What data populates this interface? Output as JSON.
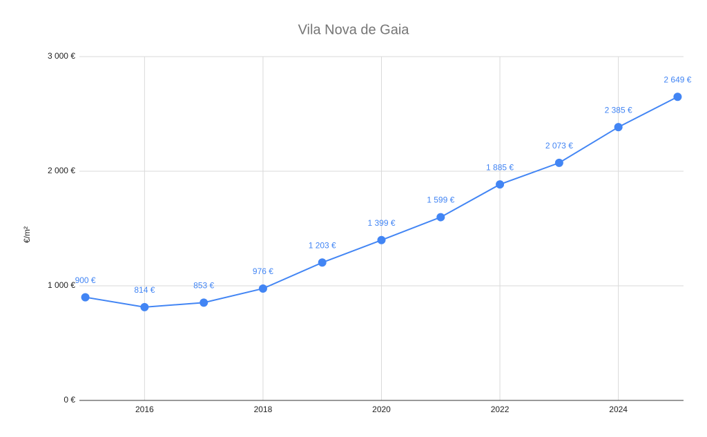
{
  "chart_data": {
    "type": "line",
    "title": "Vila Nova de Gaia",
    "y_label": "€/m²",
    "x": [
      2015,
      2016,
      2017,
      2018,
      2019,
      2020,
      2021,
      2022,
      2023,
      2024,
      2025
    ],
    "series": [
      {
        "name": "€/m²",
        "color": "#4285f4",
        "values": [
          900,
          814,
          853,
          976,
          1203,
          1399,
          1599,
          1885,
          2073,
          2385,
          2649
        ],
        "value_labels": [
          "900 €",
          "814 €",
          "853 €",
          "976 €",
          "1 203 €",
          "1 399 €",
          "1 599 €",
          "1 885 €",
          "2 073 €",
          "2 385 €",
          "2 649 €"
        ]
      }
    ],
    "xlim": [
      2014.9,
      2025.1
    ],
    "xticks": [
      2016,
      2018,
      2020,
      2022,
      2024
    ],
    "ylim": [
      0,
      3000
    ],
    "yticks": [
      {
        "value": 0,
        "label": "0 €"
      },
      {
        "value": 1000,
        "label": "1 000 €"
      },
      {
        "value": 2000,
        "label": "2 000 €"
      },
      {
        "value": 3000,
        "label": "3 000 €"
      }
    ],
    "grid": true
  }
}
